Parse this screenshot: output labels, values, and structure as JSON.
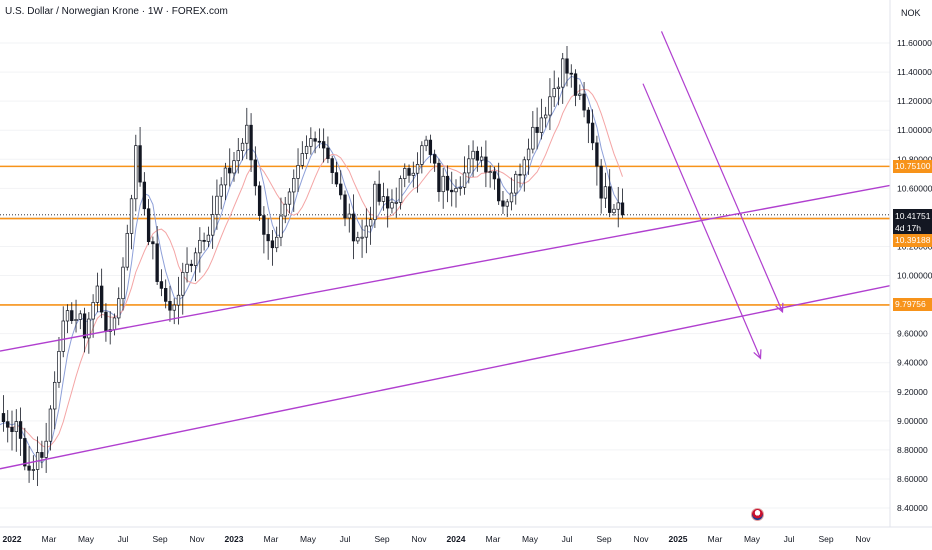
{
  "header": {
    "title": "U.S. Dollar / Norwegian Krone · 1W · FOREX.com",
    "currency": "NOK"
  },
  "price_tags": {
    "resistance": "10.75100",
    "current": "10.41751",
    "countdown": "4d 17h",
    "support_near": "10.39188",
    "support_far": "9.79756"
  },
  "colors": {
    "up": "#ffffff",
    "down": "#131722",
    "wick": "#131722",
    "level": "#f7931a",
    "trend": "#b03fcf",
    "ma_fast": "#8ea0d9",
    "ma_slow": "#f4a5a5"
  },
  "chart_data": {
    "type": "candlestick",
    "title": "U.S. Dollar / Norwegian Krone · 1W · FOREX.com",
    "ylabel": "NOK",
    "ylim": [
      8.34,
      11.84
    ],
    "y_ticks": [
      8.4,
      8.6,
      8.8,
      9.0,
      9.2,
      9.4,
      9.6,
      9.8,
      10.0,
      10.2,
      10.4,
      10.6,
      10.8,
      11.0,
      11.2,
      11.4,
      11.6
    ],
    "y_tick_labels": [
      "8.40000",
      "8.60000",
      "8.80000",
      "9.00000",
      "9.20000",
      "9.40000",
      "9.60000",
      "9.80000",
      "10.00000",
      "10.20000",
      "10.40000",
      "10.60000",
      "10.80000",
      "11.00000",
      "11.20000",
      "11.40000",
      "11.60000"
    ],
    "x_ticks": [
      "2022",
      "Mar",
      "May",
      "Jul",
      "Sep",
      "Nov",
      "2023",
      "Mar",
      "May",
      "Jul",
      "Sep",
      "Nov",
      "2024",
      "Mar",
      "May",
      "Jul",
      "Sep",
      "Nov",
      "2025",
      "Mar",
      "May",
      "Jul",
      "Sep",
      "Nov"
    ],
    "anchors": [
      [
        0,
        8.92
      ],
      [
        6,
        9.0
      ],
      [
        11,
        8.95
      ],
      [
        14,
        8.66
      ],
      [
        18,
        8.85
      ],
      [
        21,
        9.55
      ],
      [
        24,
        9.75
      ],
      [
        27,
        9.62
      ],
      [
        30,
        9.9
      ],
      [
        33,
        9.55
      ],
      [
        36,
        10.05
      ],
      [
        39,
        10.85
      ],
      [
        42,
        10.3
      ],
      [
        45,
        9.85
      ],
      [
        48,
        9.78
      ],
      [
        50,
        9.98
      ],
      [
        53,
        10.2
      ],
      [
        56,
        10.35
      ],
      [
        59,
        10.6
      ],
      [
        62,
        10.8
      ],
      [
        65,
        10.98
      ],
      [
        68,
        10.45
      ],
      [
        70,
        10.2
      ],
      [
        72,
        10.3
      ],
      [
        75,
        10.5
      ],
      [
        78,
        10.8
      ],
      [
        81,
        11.0
      ],
      [
        84,
        10.85
      ],
      [
        86,
        10.6
      ],
      [
        89,
        10.35
      ],
      [
        92,
        10.25
      ],
      [
        95,
        10.55
      ],
      [
        98,
        10.45
      ],
      [
        101,
        10.62
      ],
      [
        104,
        10.78
      ],
      [
        107,
        10.9
      ],
      [
        110,
        10.62
      ],
      [
        113,
        10.65
      ],
      [
        116,
        10.7
      ],
      [
        119,
        10.85
      ],
      [
        122,
        10.75
      ],
      [
        125,
        10.5
      ],
      [
        128,
        10.65
      ],
      [
        131,
        10.95
      ],
      [
        134,
        11.1
      ],
      [
        137,
        11.3
      ],
      [
        139,
        11.45
      ],
      [
        141,
        11.35
      ],
      [
        143,
        11.18
      ],
      [
        146,
        10.95
      ],
      [
        148,
        10.6
      ],
      [
        150,
        10.5
      ],
      [
        152,
        10.55
      ],
      [
        153,
        10.45
      ]
    ],
    "horizontal_levels": [
      10.751,
      10.41751,
      10.39188,
      9.79756
    ],
    "trendlines": [
      {
        "from": [
          "2021-12",
          9.48
        ],
        "to": [
          "2025-11",
          10.62
        ]
      },
      {
        "from": [
          "2021-12",
          8.67
        ],
        "to": [
          "2025-11",
          9.93
        ]
      }
    ],
    "arrows": [
      {
        "from": [
          "2024-12",
          11.68
        ],
        "to": [
          "2025-06",
          9.75
        ]
      },
      {
        "from": [
          "2024-11",
          11.32
        ],
        "to": [
          "2025-06",
          9.43
        ]
      }
    ],
    "last_price": 10.41751
  }
}
